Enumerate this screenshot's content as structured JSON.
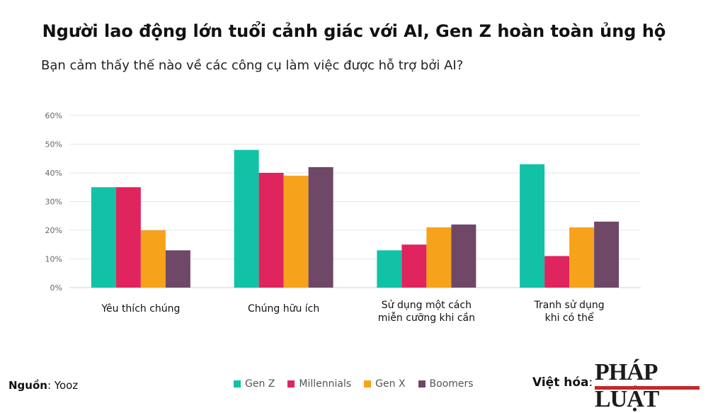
{
  "header": {
    "title": "Người lao động lớn tuổi cảnh giác với AI, Gen Z hoàn toàn ủng hộ",
    "subtitle": "Bạn cảm thấy thế nào về các công cụ làm việc được hỗ trợ bởi AI?"
  },
  "chart_data": {
    "type": "bar",
    "categories": [
      [
        "Yêu thích chúng"
      ],
      [
        "Chúng hữu ích"
      ],
      [
        "Sử dụng một cách",
        "miễn cưỡng khi cần"
      ],
      [
        "Tranh sử dụng",
        "khi có thể"
      ]
    ],
    "series": [
      {
        "name": "Gen Z",
        "color": "#12c2a6",
        "values": [
          35,
          48,
          13,
          43
        ]
      },
      {
        "name": "Millennials",
        "color": "#e0245e",
        "values": [
          35,
          40,
          15,
          11
        ]
      },
      {
        "name": "Gen X",
        "color": "#f7a21b",
        "values": [
          20,
          39,
          21,
          21
        ]
      },
      {
        "name": "Boomers",
        "color": "#6e4866",
        "values": [
          13,
          42,
          22,
          23
        ]
      }
    ],
    "yticks": [
      "0%",
      "10%",
      "20%",
      "30%",
      "40%",
      "50%",
      "60%"
    ],
    "ylim": [
      0,
      60
    ],
    "grid": true,
    "legend_position": "bottom"
  },
  "footer": {
    "source_label": "Nguồn",
    "source_value": ": Yooz",
    "localized_label": "Việt hóa",
    "localized_colon": ":",
    "logo_text": "PHÁP LUẬT"
  }
}
